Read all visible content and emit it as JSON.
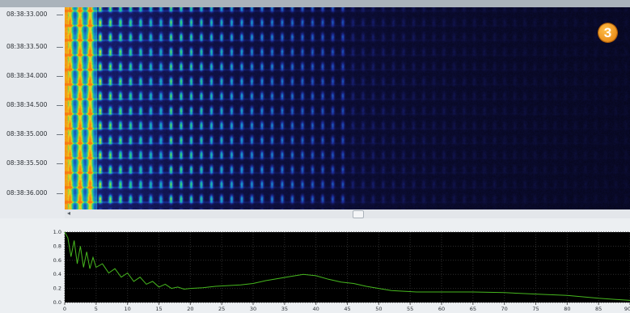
{
  "badge": {
    "label": "3"
  },
  "spectrogram": {
    "time_labels": [
      "08:38:33.000",
      "08:38:33.500",
      "08:38:34.000",
      "08:38:34.500",
      "08:38:35.000",
      "08:38:35.500",
      "08:38:36.000"
    ],
    "scroll_arrow": "◂"
  },
  "chart_data": {
    "type": "line",
    "title": "",
    "xlabel": "",
    "ylabel": "",
    "xlim": [
      0,
      90
    ],
    "ylim": [
      0,
      1.0
    ],
    "x_ticks": [
      0,
      5,
      10,
      15,
      20,
      25,
      30,
      35,
      40,
      45,
      50,
      55,
      60,
      65,
      70,
      75,
      80,
      85,
      90
    ],
    "x_tick_labels": [
      "0",
      "5",
      "10",
      "15",
      "20",
      "25",
      "30",
      "35",
      "40",
      "45",
      "50",
      "55",
      "60",
      "65",
      "70",
      "75",
      "80",
      "85",
      "90"
    ],
    "y_ticks": [
      0.0,
      0.2,
      0.4,
      0.6,
      0.8,
      1.0
    ],
    "y_tick_labels": [
      "0.0",
      "0.2",
      "0.4",
      "0.6",
      "0.8",
      "1.0"
    ],
    "grid": true,
    "background": "#000000",
    "line_color": "#46b81e",
    "series": [
      {
        "x": [
          0,
          0.5,
          1,
          1.5,
          2,
          2.5,
          3,
          3.5,
          4,
          4.5,
          5,
          6,
          7,
          8,
          9,
          10,
          11,
          12,
          13,
          14,
          15,
          16,
          17,
          18,
          19,
          20,
          22,
          24,
          26,
          28,
          30,
          32,
          34,
          36,
          38,
          40,
          42,
          44,
          46,
          48,
          50,
          52,
          54,
          56,
          58,
          60,
          65,
          70,
          75,
          80,
          85,
          90
        ],
        "y": [
          1.0,
          0.92,
          0.65,
          0.88,
          0.55,
          0.8,
          0.5,
          0.72,
          0.48,
          0.64,
          0.5,
          0.55,
          0.42,
          0.48,
          0.36,
          0.42,
          0.3,
          0.36,
          0.26,
          0.3,
          0.22,
          0.26,
          0.2,
          0.22,
          0.19,
          0.2,
          0.21,
          0.23,
          0.24,
          0.25,
          0.27,
          0.31,
          0.34,
          0.37,
          0.4,
          0.38,
          0.33,
          0.29,
          0.27,
          0.23,
          0.2,
          0.17,
          0.16,
          0.15,
          0.15,
          0.15,
          0.15,
          0.14,
          0.12,
          0.1,
          0.06,
          0.03
        ]
      }
    ]
  }
}
